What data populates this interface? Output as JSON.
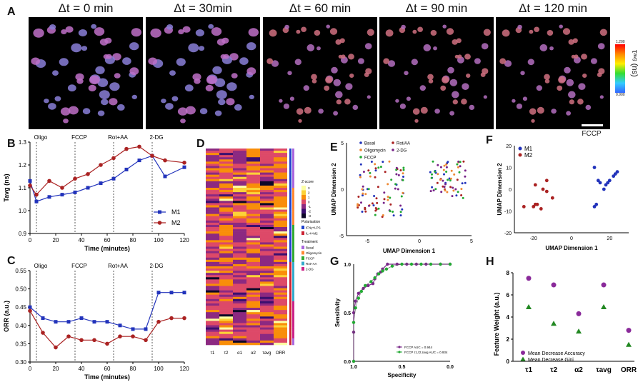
{
  "panel_labels": {
    "A": "A",
    "B": "B",
    "C": "C",
    "D": "D",
    "E": "E",
    "F": "F",
    "G": "G",
    "H": "H"
  },
  "panelA": {
    "titles": [
      "Δt = 0 min",
      "Δt = 30min",
      "Δt = 60 min",
      "Δt = 90 min",
      "Δt = 120 min"
    ],
    "colorbar": {
      "max": "1.200",
      "min": "0.900",
      "label": "τ",
      "label_sub": "avg",
      "label_unit": "(ns)"
    }
  },
  "panelF_title": "FCCP",
  "chart_data": [
    {
      "id": "B",
      "type": "line",
      "x": [
        0,
        5,
        15,
        25,
        35,
        45,
        55,
        65,
        75,
        85,
        95,
        105,
        120
      ],
      "series": [
        {
          "name": "M1",
          "color": "#2233bb",
          "values": [
            1.13,
            1.04,
            1.06,
            1.07,
            1.08,
            1.1,
            1.12,
            1.14,
            1.18,
            1.22,
            1.24,
            1.15,
            1.19
          ]
        },
        {
          "name": "M2",
          "color": "#aa2222",
          "values": [
            1.11,
            1.07,
            1.13,
            1.1,
            1.14,
            1.16,
            1.2,
            1.23,
            1.27,
            1.28,
            1.24,
            1.22,
            1.21
          ]
        }
      ],
      "ylabel": "Tavg (ns)",
      "xlabel": "Time (minutes)",
      "ylim": [
        0.9,
        1.3
      ],
      "yticks": [
        "0.9",
        "1.0",
        "1.1",
        "1.2",
        "1.3"
      ],
      "xlim": [
        0,
        120
      ],
      "xticks": [
        "0",
        "20",
        "40",
        "60",
        "80",
        "100",
        "120"
      ],
      "events": [
        {
          "label": "Oligo",
          "x": 5
        },
        {
          "label": "FCCP",
          "x": 35
        },
        {
          "label": "Rot+AA",
          "x": 65
        },
        {
          "label": "2-DG",
          "x": 95
        }
      ],
      "legend": "right"
    },
    {
      "id": "C",
      "type": "line",
      "x": [
        0,
        10,
        20,
        30,
        40,
        50,
        60,
        70,
        80,
        90,
        100,
        110,
        120
      ],
      "series": [
        {
          "name": "M1",
          "color": "#2233bb",
          "values": [
            0.45,
            0.42,
            0.41,
            0.41,
            0.42,
            0.41,
            0.41,
            0.4,
            0.39,
            0.39,
            0.49,
            0.49,
            0.49
          ]
        },
        {
          "name": "M2",
          "color": "#aa2222",
          "values": [
            0.44,
            0.38,
            0.34,
            0.37,
            0.36,
            0.36,
            0.35,
            0.37,
            0.37,
            0.36,
            0.41,
            0.42,
            0.42
          ]
        }
      ],
      "ylabel": "ORR (a.u.)",
      "xlabel": "Time (minutes)",
      "ylim": [
        0.3,
        0.55
      ],
      "yticks": [
        "0.30",
        "0.35",
        "0.40",
        "0.45",
        "0.50",
        "0.55"
      ],
      "xlim": [
        0,
        120
      ],
      "xticks": [
        "0",
        "20",
        "40",
        "60",
        "80",
        "100",
        "120"
      ],
      "events": [
        {
          "label": "Oligo",
          "x": 5
        },
        {
          "label": "FCCP",
          "x": 35
        },
        {
          "label": "Rot+AA",
          "x": 65
        },
        {
          "label": "2-DG",
          "x": 95
        }
      ]
    },
    {
      "id": "D",
      "type": "heatmap",
      "columns": [
        "τ1",
        "τ2",
        "α1",
        "α2",
        "τavg",
        "ORR"
      ],
      "zscore_label": "Z-score",
      "zscore_ticks": [
        "3",
        "2",
        "1",
        "0",
        "-1",
        "-2",
        "-3"
      ],
      "polarization_label": "Polarisation",
      "polarization_items": [
        {
          "label": "IFNγ+LPS",
          "color": "#2244cc"
        },
        {
          "label": "IL-4+M2",
          "color": "#cc2233"
        }
      ],
      "treatment_label": "Treatment",
      "treatment_items": [
        {
          "label": "Basal",
          "color": "#aa66dd"
        },
        {
          "label": "Oligomycin",
          "color": "#ff8833"
        },
        {
          "label": "FCCP",
          "color": "#33aa33"
        },
        {
          "label": "Rot+AA",
          "color": "#33aacc"
        },
        {
          "label": "2-DG",
          "color": "#cc2288"
        }
      ]
    },
    {
      "id": "E",
      "type": "scatter",
      "xlabel": "UMAP Dimension 1",
      "ylabel": "UMAP Dimension 2",
      "xlim": [
        -7,
        5
      ],
      "ylim": [
        -5,
        5
      ],
      "xticks": [
        "-5",
        "0",
        "5"
      ],
      "yticks": [
        "-5",
        "0",
        "5"
      ],
      "legend": [
        {
          "name": "Basal",
          "color": "#2233bb"
        },
        {
          "name": "Rot/AA",
          "color": "#aa2222"
        },
        {
          "name": "Oligomycin",
          "color": "#ee8833"
        },
        {
          "name": "2-DG",
          "color": "#772288"
        },
        {
          "name": "FCCP",
          "color": "#22aa33"
        }
      ]
    },
    {
      "id": "F",
      "type": "scatter",
      "xlabel": "UMAP Dimension 1",
      "ylabel": "UMAP Dimension 2",
      "xlim": [
        -30,
        30
      ],
      "ylim": [
        -20,
        20
      ],
      "xticks": [
        "-20",
        "0",
        "20"
      ],
      "yticks": [
        "-20",
        "-10",
        "0",
        "10",
        "20"
      ],
      "legend": [
        {
          "name": "M1",
          "color": "#2233bb"
        },
        {
          "name": "M2",
          "color": "#aa2222"
        }
      ]
    },
    {
      "id": "G",
      "type": "line",
      "xlabel": "Specificity",
      "ylabel": "Sensitivity",
      "xticks": [
        "1.0",
        "0.5",
        "0.0"
      ],
      "yticks": [
        "0.0",
        "0.5",
        "1.0"
      ],
      "series": [
        {
          "name": "FCCP AUC = 0.944",
          "color": "#7a2a8a",
          "x": [
            1.0,
            1.0,
            1.0,
            0.98,
            0.95,
            0.9,
            0.85,
            0.8,
            0.78,
            0.75,
            0.72,
            0.7,
            0.65,
            0.55,
            0.45,
            0.35,
            0.25,
            0.1,
            0.0
          ],
          "y": [
            0.0,
            0.3,
            0.5,
            0.62,
            0.7,
            0.75,
            0.78,
            0.8,
            0.85,
            0.9,
            0.92,
            0.95,
            1.0,
            1.0,
            1.0,
            1.0,
            1.0,
            1.0,
            1.0
          ]
        },
        {
          "name": "FCCP τ1,τ2,τavg AUC = 0.934",
          "color": "#22aa33",
          "x": [
            1.0,
            1.0,
            0.98,
            0.95,
            0.92,
            0.88,
            0.82,
            0.78,
            0.74,
            0.7,
            0.66,
            0.6,
            0.5,
            0.4,
            0.3,
            0.2,
            0.1,
            0.0
          ],
          "y": [
            0.0,
            0.4,
            0.55,
            0.65,
            0.72,
            0.78,
            0.82,
            0.86,
            0.9,
            0.93,
            0.95,
            0.98,
            1.0,
            1.0,
            1.0,
            1.0,
            1.0,
            1.0
          ]
        }
      ]
    },
    {
      "id": "H",
      "type": "scatter",
      "ylabel": "Feature Weight (a.u.)",
      "categories": [
        "τ1",
        "τ2",
        "α2",
        "τavg",
        "ORR"
      ],
      "ylim": [
        0,
        8
      ],
      "yticks": [
        "0",
        "2",
        "4",
        "6",
        "8"
      ],
      "series": [
        {
          "name": "Mean Decrease Accuracy",
          "color": "#8a2a9a",
          "marker": "circle",
          "values": [
            7.5,
            6.9,
            4.3,
            6.9,
            2.8
          ]
        },
        {
          "name": "Mean Decrease Gini",
          "color": "#228822",
          "marker": "triangle",
          "values": [
            4.9,
            3.4,
            2.7,
            4.9,
            1.5
          ]
        }
      ]
    }
  ]
}
